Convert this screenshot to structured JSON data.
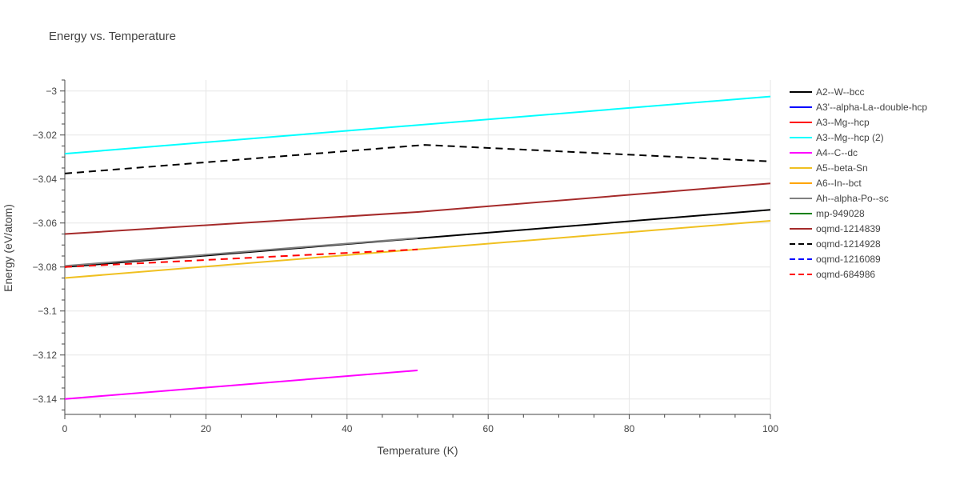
{
  "chart_data": {
    "type": "line",
    "title": "Energy vs. Temperature",
    "xlabel": "Temperature (K)",
    "ylabel": "Energy (eV/atom)",
    "xlim": [
      0,
      100
    ],
    "ylim": [
      -3.147,
      -2.995
    ],
    "xticks": [
      0,
      20,
      40,
      60,
      80,
      100
    ],
    "xtick_labels": [
      "0",
      "20",
      "40",
      "60",
      "80",
      "100"
    ],
    "yticks": [
      -3,
      -3.02,
      -3.04,
      -3.06,
      -3.08,
      -3.1,
      -3.12,
      -3.14
    ],
    "ytick_labels": [
      "−3",
      "−3.02",
      "−3.04",
      "−3.06",
      "−3.08",
      "−3.1",
      "−3.12",
      "−3.14"
    ],
    "grid": true,
    "legend_position": "right",
    "series": [
      {
        "name": "A2--W--bcc",
        "color": "#000000",
        "dash": "solid",
        "x": [
          0,
          50,
          100
        ],
        "y": [
          -3.08,
          -3.067,
          -3.054
        ]
      },
      {
        "name": "A3'--alpha-La--double-hcp",
        "color": "#0000ff",
        "dash": "solid",
        "x": [],
        "y": []
      },
      {
        "name": "A3--Mg--hcp",
        "color": "#ff0000",
        "dash": "solid",
        "x": [],
        "y": []
      },
      {
        "name": "A3--Mg--hcp (2)",
        "color": "#00ffff",
        "dash": "solid",
        "x": [
          0,
          100
        ],
        "y": [
          -3.0285,
          -3.0025
        ]
      },
      {
        "name": "A4--C--dc",
        "color": "#ff00ff",
        "dash": "solid",
        "x": [
          0,
          50
        ],
        "y": [
          -3.14,
          -3.127
        ]
      },
      {
        "name": "A5--beta-Sn",
        "color": "#f0c020",
        "dash": "solid",
        "x": [
          0,
          100
        ],
        "y": [
          -3.085,
          -3.059
        ]
      },
      {
        "name": "A6--In--bct",
        "color": "#ffa500",
        "dash": "solid",
        "x": [],
        "y": []
      },
      {
        "name": "Ah--alpha-Po--sc",
        "color": "#808080",
        "dash": "solid",
        "x": [
          0,
          50
        ],
        "y": [
          -3.0795,
          -3.0668
        ]
      },
      {
        "name": "mp-949028",
        "color": "#008000",
        "dash": "solid",
        "x": [],
        "y": []
      },
      {
        "name": "oqmd-1214839",
        "color": "#a52a2a",
        "dash": "solid",
        "x": [
          0,
          50,
          100
        ],
        "y": [
          -3.065,
          -3.055,
          -3.042
        ]
      },
      {
        "name": "oqmd-1214928",
        "color": "#000000",
        "dash": "dash",
        "x": [
          0,
          51,
          100
        ],
        "y": [
          -3.0375,
          -3.0245,
          -3.032
        ]
      },
      {
        "name": "oqmd-1216089",
        "color": "#0000ff",
        "dash": "dash",
        "x": [],
        "y": []
      },
      {
        "name": "oqmd-684986",
        "color": "#ff0000",
        "dash": "dash",
        "x": [
          0,
          50
        ],
        "y": [
          -3.08,
          -3.072
        ]
      }
    ]
  }
}
